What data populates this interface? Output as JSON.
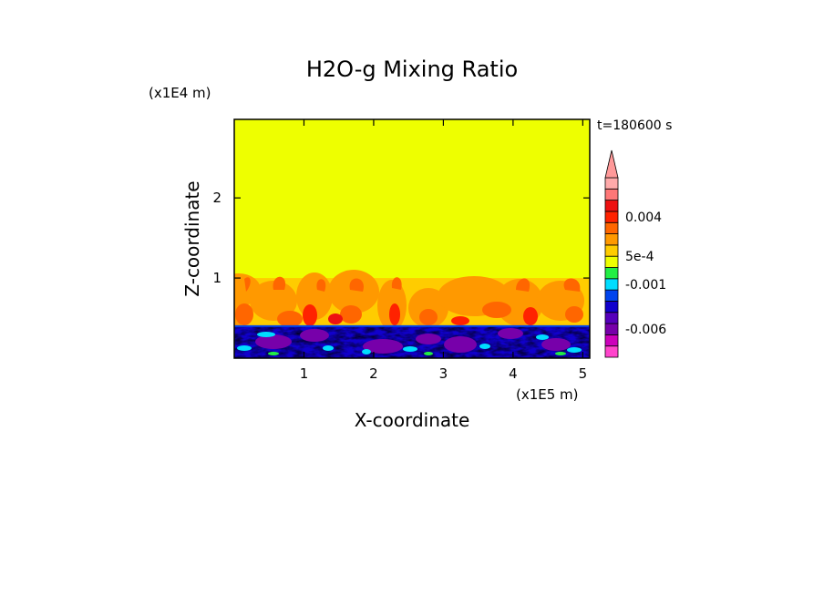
{
  "chart_data": {
    "type": "heatmap",
    "title": "H2O-g Mixing Ratio",
    "xlabel": "X-coordinate",
    "ylabel": "Z-coordinate",
    "x_scale_label": "(x1E5 m)",
    "y_scale_label": "(x1E4 m)",
    "time_label": "t=180600 s",
    "xlim": [
      0,
      5.1
    ],
    "ylim": [
      0,
      2.98
    ],
    "x_ticks": [
      1,
      2,
      3,
      4,
      5
    ],
    "y_ticks": [
      1,
      2
    ],
    "x_tick_labels": [
      "1",
      "2",
      "3",
      "4",
      "5"
    ],
    "y_tick_labels": [
      "1",
      "2"
    ],
    "grid": false,
    "colorbar": {
      "levels": [
        {
          "color": "#ff44cc"
        },
        {
          "color": "#cc00bb"
        },
        {
          "color": "#7700aa"
        },
        {
          "color": "#5500bb"
        },
        {
          "color": "#1100cc"
        },
        {
          "color": "#0044ee"
        },
        {
          "color": "#00ddff"
        },
        {
          "color": "#22ee44"
        },
        {
          "color": "#eeff00"
        },
        {
          "color": "#ffcc00"
        },
        {
          "color": "#ff9900"
        },
        {
          "color": "#ff6600"
        },
        {
          "color": "#ff2200"
        },
        {
          "color": "#ee1111"
        },
        {
          "color": "#ff7777"
        },
        {
          "color": "#ffaaaa"
        }
      ],
      "tick_labels": [
        "-0.006",
        "-0.001",
        "5e-4",
        "0.004"
      ],
      "extend_max": true
    },
    "field_description_regions": [
      {
        "z_range": [
          1.0,
          2.98
        ],
        "value_class": "near-zero",
        "color": "#eeff00"
      },
      {
        "z_range": [
          0.4,
          1.0
        ],
        "value_class": "positive plumes",
        "color": "#ff9900"
      },
      {
        "z_range": [
          0.0,
          0.4
        ],
        "value_class": "negative",
        "color": "#1100cc"
      }
    ]
  }
}
